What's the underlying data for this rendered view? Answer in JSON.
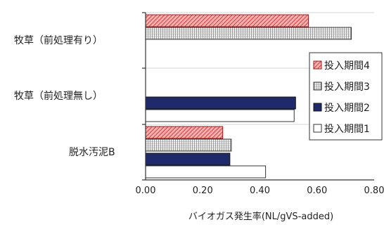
{
  "chart_data": {
    "type": "bar",
    "orientation": "horizontal",
    "categories": [
      "牧草（前処理有り）",
      "牧草（前処理無し）",
      "脱水汚泥B"
    ],
    "series": [
      {
        "name": "投入期間4",
        "values": [
          0.57,
          null,
          0.27
        ],
        "color": "#f07070",
        "pattern": "diagonal-hatch"
      },
      {
        "name": "投入期間3",
        "values": [
          0.72,
          null,
          0.3
        ],
        "color": "#888888",
        "pattern": "grid-hatch"
      },
      {
        "name": "投入期間2",
        "values": [
          null,
          0.525,
          0.295
        ],
        "color": "#1f2a6b",
        "pattern": "solid"
      },
      {
        "name": "投入期間1",
        "values": [
          null,
          0.52,
          0.42
        ],
        "color": "#ffffff",
        "pattern": "none"
      }
    ],
    "xlim": [
      0,
      0.8
    ],
    "xticks": [
      "0.00",
      "0.20",
      "0.40",
      "0.60",
      "0.80"
    ],
    "xlabel": "バイオガス発生率(NL/gVS-added)",
    "grid": "vertical-separators",
    "legend_position": "right"
  }
}
